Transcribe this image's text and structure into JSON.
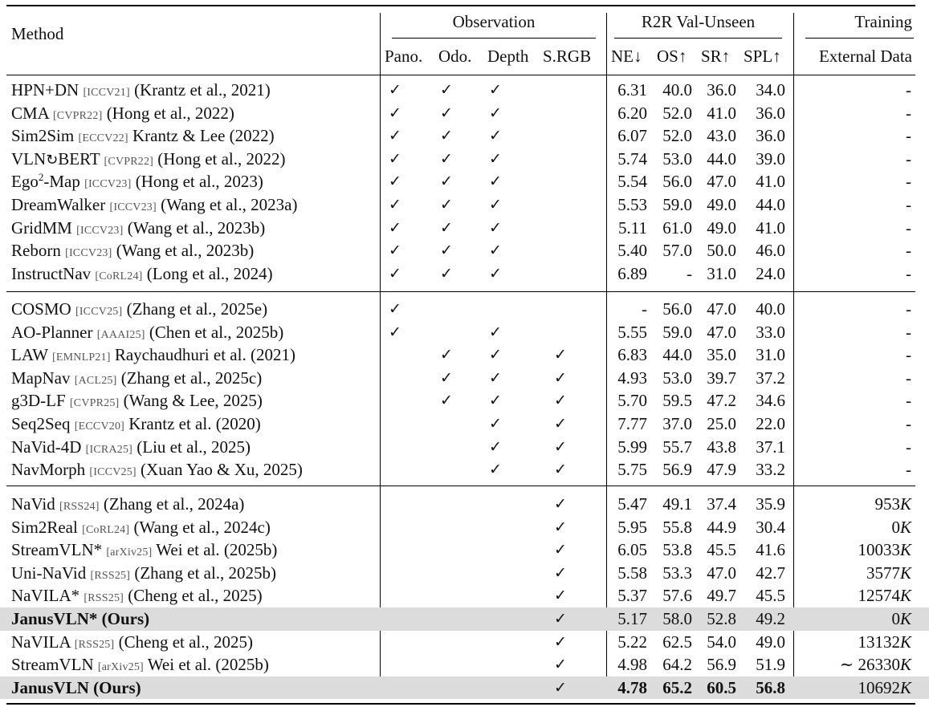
{
  "headers": {
    "method": "Method",
    "observation": "Observation",
    "r2r": "R2R Val-Unseen",
    "training": "Training",
    "pano": "Pano.",
    "odo": "Odo.",
    "depth": "Depth",
    "srgb": "S.RGB",
    "ne": "NE↓",
    "os": "OS↑",
    "sr": "SR↑",
    "spl": "SPL↑",
    "external": "External Data"
  },
  "check_mark": "✓",
  "groups": [
    {
      "rows": [
        {
          "name": "HPN+DN",
          "venue": "[ICCV21]",
          "cite": "(Krantz et al., 2021)",
          "pano": true,
          "odo": true,
          "depth": true,
          "srgb": false,
          "ne": "6.31",
          "os": "40.0",
          "sr": "36.0",
          "spl": "34.0",
          "ext": "-"
        },
        {
          "name": "CMA",
          "venue": "[CVPR22]",
          "cite": "(Hong et al., 2022)",
          "pano": true,
          "odo": true,
          "depth": true,
          "srgb": false,
          "ne": "6.20",
          "os": "52.0",
          "sr": "41.0",
          "spl": "36.0",
          "ext": "-"
        },
        {
          "name": "Sim2Sim",
          "venue": "[ECCV22]",
          "cite": "Krantz & Lee (2022)",
          "pano": true,
          "odo": true,
          "depth": true,
          "srgb": false,
          "ne": "6.07",
          "os": "52.0",
          "sr": "43.0",
          "spl": "36.0",
          "ext": "-"
        },
        {
          "name_pre": "VLN",
          "name_icon": "refresh-arrow-icon",
          "name": "BERT",
          "venue": "[CVPR22]",
          "cite": "(Hong et al., 2022)",
          "pano": true,
          "odo": true,
          "depth": true,
          "srgb": false,
          "ne": "5.74",
          "os": "53.0",
          "sr": "44.0",
          "spl": "39.0",
          "ext": "-"
        },
        {
          "name_pre": "Ego",
          "name_sup": "2",
          "name": "-Map",
          "venue": "[ICCV23]",
          "cite": "(Hong et al., 2023)",
          "pano": true,
          "odo": true,
          "depth": true,
          "srgb": false,
          "ne": "5.54",
          "os": "56.0",
          "sr": "47.0",
          "spl": "41.0",
          "ext": "-"
        },
        {
          "name": "DreamWalker",
          "venue": "[ICCV23]",
          "cite": "(Wang et al., 2023a)",
          "pano": true,
          "odo": true,
          "depth": true,
          "srgb": false,
          "ne": "5.53",
          "os": "59.0",
          "sr": "49.0",
          "spl": "44.0",
          "ext": "-"
        },
        {
          "name": "GridMM",
          "venue": "[ICCV23]",
          "cite": "(Wang et al., 2023b)",
          "pano": true,
          "odo": true,
          "depth": true,
          "srgb": false,
          "ne": "5.11",
          "os": "61.0",
          "sr": "49.0",
          "spl": "41.0",
          "ext": "-"
        },
        {
          "name": "Reborn",
          "venue": "[ICCV23]",
          "cite": "(Wang et al., 2023b)",
          "pano": true,
          "odo": true,
          "depth": true,
          "srgb": false,
          "ne": "5.40",
          "os": "57.0",
          "sr": "50.0",
          "spl": "46.0",
          "ext": "-"
        },
        {
          "name": "InstructNav",
          "venue": "[CoRL24]",
          "cite": "(Long et al., 2024)",
          "pano": true,
          "odo": true,
          "depth": true,
          "srgb": false,
          "ne": "6.89",
          "os": "-",
          "sr": "31.0",
          "spl": "24.0",
          "ext": "-"
        }
      ]
    },
    {
      "rows": [
        {
          "name": "COSMO",
          "venue": "[ICCV25]",
          "cite": "(Zhang et al., 2025e)",
          "pano": true,
          "odo": false,
          "depth": false,
          "srgb": false,
          "ne": "-",
          "os": "56.0",
          "sr": "47.0",
          "spl": "40.0",
          "ext": "-"
        },
        {
          "name": "AO-Planner",
          "venue": "[AAAI25]",
          "cite": "(Chen et al., 2025b)",
          "pano": true,
          "odo": false,
          "depth": true,
          "srgb": false,
          "ne": "5.55",
          "os": "59.0",
          "sr": "47.0",
          "spl": "33.0",
          "ext": "-"
        },
        {
          "name": "LAW",
          "venue": "[EMNLP21]",
          "cite": "Raychaudhuri et al. (2021)",
          "pano": false,
          "odo": true,
          "depth": true,
          "srgb": true,
          "ne": "6.83",
          "os": "44.0",
          "sr": "35.0",
          "spl": "31.0",
          "ext": "-"
        },
        {
          "name": "MapNav",
          "venue": "[ACL25]",
          "cite": "(Zhang et al., 2025c)",
          "pano": false,
          "odo": true,
          "depth": true,
          "srgb": true,
          "ne": "4.93",
          "os": "53.0",
          "sr": "39.7",
          "spl": "37.2",
          "ext": "-"
        },
        {
          "name": "g3D-LF",
          "venue": "[CVPR25]",
          "cite": "(Wang & Lee, 2025)",
          "pano": false,
          "odo": true,
          "depth": true,
          "srgb": true,
          "ne": "5.70",
          "os": "59.5",
          "sr": "47.2",
          "spl": "34.6",
          "ext": "-"
        },
        {
          "name": "Seq2Seq",
          "venue": "[ECCV20]",
          "cite": "Krantz et al. (2020)",
          "pano": false,
          "odo": false,
          "depth": true,
          "srgb": true,
          "ne": "7.77",
          "os": "37.0",
          "sr": "25.0",
          "spl": "22.0",
          "ext": "-"
        },
        {
          "name": "NaVid-4D",
          "venue": "[ICRA25]",
          "cite": "(Liu et al., 2025)",
          "pano": false,
          "odo": false,
          "depth": true,
          "srgb": true,
          "ne": "5.99",
          "os": "55.7",
          "sr": "43.8",
          "spl": "37.1",
          "ext": "-"
        },
        {
          "name": "NavMorph",
          "venue": "[ICCV25]",
          "cite": "(Xuan Yao & Xu, 2025)",
          "pano": false,
          "odo": false,
          "depth": true,
          "srgb": true,
          "ne": "5.75",
          "os": "56.9",
          "sr": "47.9",
          "spl": "33.2",
          "ext": "-"
        }
      ]
    },
    {
      "rows": [
        {
          "name": "NaVid",
          "venue": "[RSS24]",
          "cite": "(Zhang et al., 2024a)",
          "pano": false,
          "odo": false,
          "depth": false,
          "srgb": true,
          "ne": "5.47",
          "os": "49.1",
          "sr": "37.4",
          "spl": "35.9",
          "ext": "953",
          "ext_unit": "K"
        },
        {
          "name": "Sim2Real",
          "venue": "[CoRL24]",
          "cite": "(Wang et al., 2024c)",
          "pano": false,
          "odo": false,
          "depth": false,
          "srgb": true,
          "ne": "5.95",
          "os": "55.8",
          "sr": "44.9",
          "spl": "30.4",
          "ext": "0",
          "ext_unit": "K"
        },
        {
          "name": "StreamVLN*",
          "venue": "[arXiv25]",
          "cite": "Wei et al. (2025b)",
          "pano": false,
          "odo": false,
          "depth": false,
          "srgb": true,
          "ne": "6.05",
          "os": "53.8",
          "sr": "45.5",
          "spl": "41.6",
          "ext": "10033",
          "ext_unit": "K"
        },
        {
          "name": "Uni-NaVid",
          "venue": "[RSS25]",
          "cite": "(Zhang et al., 2025b)",
          "pano": false,
          "odo": false,
          "depth": false,
          "srgb": true,
          "ne": "5.58",
          "os": "53.3",
          "sr": "47.0",
          "spl": "42.7",
          "ext": "3577",
          "ext_unit": "K"
        },
        {
          "name": "NaVILA*",
          "venue": "[RSS25]",
          "cite": "(Cheng et al., 2025)",
          "pano": false,
          "odo": false,
          "depth": false,
          "srgb": true,
          "ne": "5.37",
          "os": "57.6",
          "sr": "49.7",
          "spl": "45.5",
          "ext": "12574",
          "ext_unit": "K"
        },
        {
          "name": "JanusVLN* (Ours)",
          "venue": "",
          "cite": "",
          "bold": true,
          "highlight": true,
          "pano": false,
          "odo": false,
          "depth": false,
          "srgb": true,
          "ne": "5.17",
          "os": "58.0",
          "sr": "52.8",
          "spl": "49.2",
          "ext": "0",
          "ext_unit": "K"
        },
        {
          "name": "NaVILA",
          "venue": "[RSS25]",
          "cite": "(Cheng et al., 2025)",
          "pano": false,
          "odo": false,
          "depth": false,
          "srgb": true,
          "ne": "5.22",
          "os": "62.5",
          "sr": "54.0",
          "spl": "49.0",
          "ext": "13132",
          "ext_unit": "K"
        },
        {
          "name": "StreamVLN",
          "venue": "[arXiv25]",
          "cite": "Wei et al. (2025b)",
          "pano": false,
          "odo": false,
          "depth": false,
          "srgb": true,
          "ne": "4.98",
          "os": "64.2",
          "sr": "56.9",
          "spl": "51.9",
          "ext": "∼ 26330",
          "ext_unit": "K"
        },
        {
          "name": "JanusVLN (Ours)",
          "venue": "",
          "cite": "",
          "bold": true,
          "bold_metrics": true,
          "highlight": true,
          "pano": false,
          "odo": false,
          "depth": false,
          "srgb": true,
          "ne": "4.78",
          "os": "65.2",
          "sr": "60.5",
          "spl": "56.8",
          "ext": "10692",
          "ext_unit": "K"
        }
      ]
    }
  ]
}
